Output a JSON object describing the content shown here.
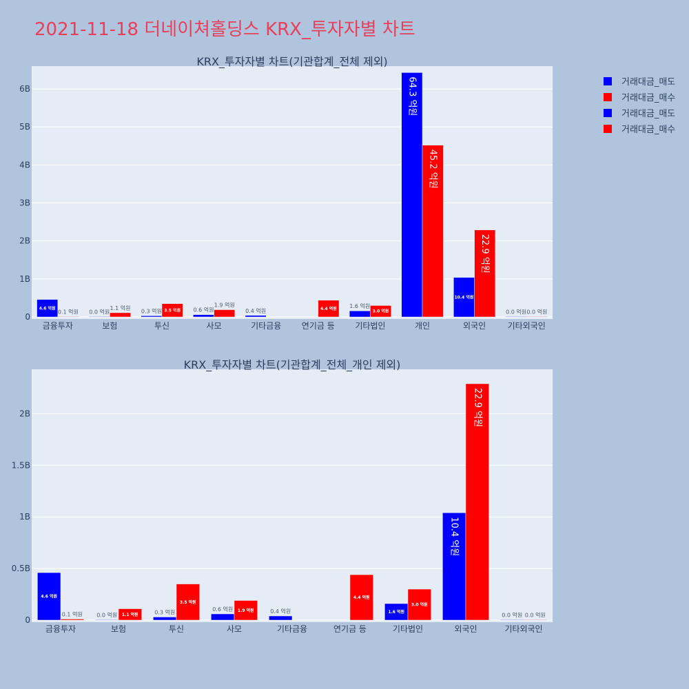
{
  "title": "2021-11-18 더네이쳐홀딩스 KRX_투자자별 차트",
  "legend": [
    {
      "label": "거래대금_매도",
      "color": "#0000ff"
    },
    {
      "label": "거래대금_매수",
      "color": "#ff0000"
    },
    {
      "label": "거래대금_매도",
      "color": "#0000ff"
    },
    {
      "label": "거래대금_매수",
      "color": "#ff0000"
    }
  ],
  "chart_data": [
    {
      "type": "bar",
      "title": "KRX_투자자별 차트(기관합계_전체 제외)",
      "categories": [
        "금융투자",
        "보험",
        "투신",
        "사모",
        "기타금융",
        "연기금 등",
        "기타법인",
        "개인",
        "외국인",
        "기타외국인"
      ],
      "ylim": [
        0,
        6.6
      ],
      "y_unit": "B",
      "yticks": [
        0,
        1,
        2,
        3,
        4,
        5,
        6
      ],
      "ytick_labels": [
        "0",
        "1B",
        "2B",
        "3B",
        "4B",
        "5B",
        "6B"
      ],
      "series": [
        {
          "name": "거래대금_매도",
          "color": "#0000ff",
          "values": [
            0.46,
            0.0,
            0.03,
            0.06,
            0.04,
            null,
            0.16,
            6.43,
            1.04,
            0.0
          ],
          "labels": [
            "4.6 억원",
            "0.0 억원",
            "0.3 억원",
            "0.6 억원",
            "0.4 억원",
            "",
            "1.6 억원",
            "64.3 억원",
            "10.4 억원",
            "0.0 억원"
          ]
        },
        {
          "name": "거래대금_매수",
          "color": "#ff0000",
          "values": [
            0.01,
            0.11,
            0.35,
            0.19,
            null,
            0.44,
            0.3,
            4.52,
            2.29,
            0.0
          ],
          "labels": [
            "0.1 억원",
            "1.1 억원",
            "3.5 억원",
            "1.9 억원",
            "",
            "4.4 억원",
            "3.0 억원",
            "45.2 억원",
            "22.9 억원",
            "0.0 억원"
          ]
        }
      ]
    },
    {
      "type": "bar",
      "title": "KRX_투자자별 차트(기관합계_전체_개인 제외)",
      "categories": [
        "금융투자",
        "보험",
        "투신",
        "사모",
        "기타금융",
        "연기금 등",
        "기타법인",
        "외국인",
        "기타외국인"
      ],
      "ylim": [
        0,
        2.43
      ],
      "y_unit": "B",
      "yticks": [
        0,
        0.5,
        1,
        1.5,
        2
      ],
      "ytick_labels": [
        "0",
        "0.5B",
        "1B",
        "1.5B",
        "2B"
      ],
      "series": [
        {
          "name": "거래대금_매도",
          "color": "#0000ff",
          "values": [
            0.46,
            0.0,
            0.03,
            0.06,
            0.04,
            null,
            0.16,
            1.04,
            0.0
          ],
          "labels": [
            "4.6 억원",
            "0.0 억원",
            "0.3 억원",
            "0.6 억원",
            "0.4 억원",
            "",
            "1.6 억원",
            "10.4 억원",
            "0.0 억원"
          ]
        },
        {
          "name": "거래대금_매수",
          "color": "#ff0000",
          "values": [
            0.01,
            0.11,
            0.35,
            0.19,
            null,
            0.44,
            0.3,
            2.29,
            0.0
          ],
          "labels": [
            "0.1 억원",
            "1.1 억원",
            "3.5 억원",
            "1.9 억원",
            "",
            "4.4 억원",
            "3.0 억원",
            "22.9 억원",
            "0.0 억원"
          ]
        }
      ]
    }
  ]
}
